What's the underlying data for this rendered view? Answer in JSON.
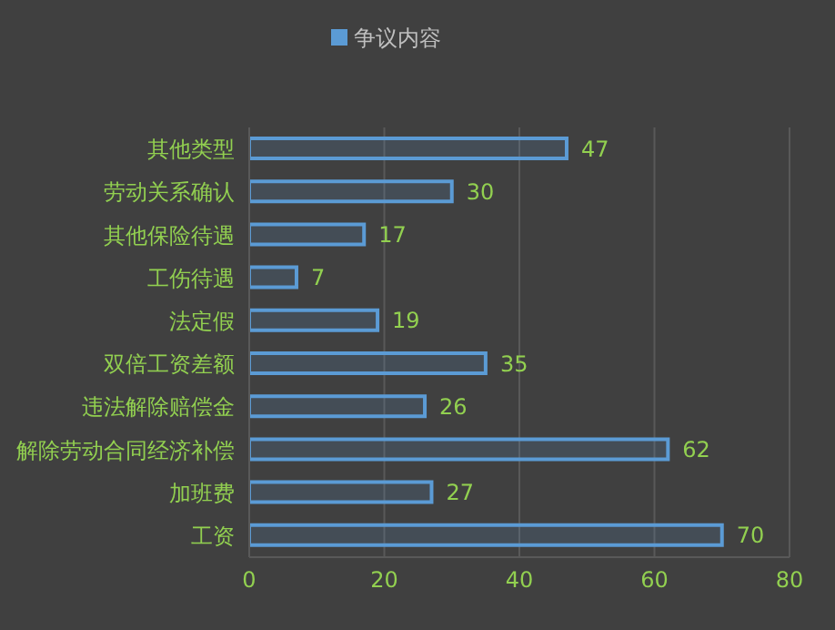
{
  "chart_data": {
    "type": "bar",
    "orientation": "horizontal",
    "categories": [
      "其他类型",
      "劳动关系确认",
      "其他保险待遇",
      "工伤待遇",
      "法定假",
      "双倍工资差额",
      "违法解除赔偿金",
      "解除劳动合同经济补偿",
      "加班费",
      "工资"
    ],
    "series": [
      {
        "name": "争议内容",
        "color": "#5b9bd5",
        "values": [
          47,
          30,
          17,
          7,
          19,
          35,
          26,
          62,
          27,
          70
        ]
      }
    ],
    "xlim": [
      0,
      80
    ],
    "xticks": [
      0,
      20,
      40,
      60,
      80
    ],
    "grid": "x",
    "legend": "top",
    "data_labels": true
  }
}
